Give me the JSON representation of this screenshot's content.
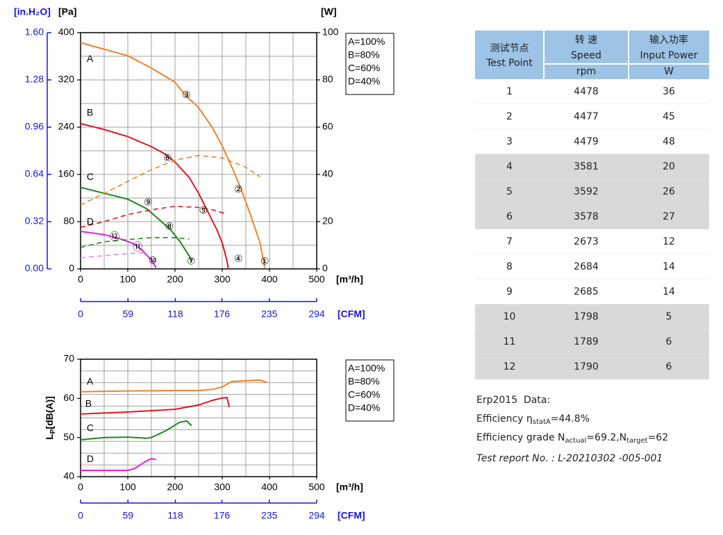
{
  "chart_data": [
    {
      "type": "line",
      "x_label": "[m³/h]",
      "x2_label": "[CFM]",
      "y_label": "[Pa]",
      "y2_label": "[W]",
      "y3_label": "[in.H₂O]",
      "xlim": [
        0,
        500
      ],
      "xticks": [
        0,
        100,
        200,
        300,
        400,
        500
      ],
      "x2lim": [
        0,
        294
      ],
      "x2ticks": [
        0,
        59,
        118,
        176,
        235,
        294
      ],
      "ylim": [
        0,
        400
      ],
      "yticks": [
        0,
        80,
        160,
        240,
        320,
        400
      ],
      "y2lim": [
        0,
        100
      ],
      "y2ticks": [
        0,
        20,
        40,
        60,
        80,
        100
      ],
      "y3lim": [
        0,
        1.6
      ],
      "y3ticks": [
        {
          "value": 0,
          "label": "0.00"
        },
        0.32,
        0.64,
        0.96,
        1.28,
        {
          "value": 1.6,
          "label": "1.60"
        }
      ],
      "grid": true,
      "xgrid": [
        50,
        100,
        150,
        200,
        250,
        300,
        350,
        400,
        450
      ],
      "ygrid": [
        40,
        80,
        120,
        160,
        200,
        240,
        280,
        320,
        360
      ],
      "legend": "outside-right",
      "series": [
        {
          "name": "A=100%",
          "color": "#f58220",
          "x": [
            0,
            50,
            100,
            150,
            200,
            222,
            250,
            280,
            300,
            320,
            340,
            360,
            380,
            390
          ],
          "values": [
            383,
            372,
            361,
            340,
            316,
            294,
            273,
            238,
            208,
            173,
            135,
            91,
            44,
            2
          ]
        },
        {
          "name": "B=80%",
          "color": "#e8141b",
          "x": [
            0,
            50,
            100,
            150,
            180,
            200,
            230,
            250,
            270,
            290,
            300,
            310,
            313
          ],
          "values": [
            246,
            236,
            224,
            207,
            194,
            181,
            155,
            128,
            96,
            64,
            44,
            14,
            0
          ]
        },
        {
          "name": "C=60%",
          "color": "#1a8a1a",
          "x": [
            0,
            50,
            100,
            140,
            160,
            190,
            210,
            230,
            235
          ],
          "values": [
            138,
            128,
            118,
            102,
            88,
            67,
            47,
            22,
            12
          ]
        },
        {
          "name": "D=40%",
          "color": "#e61ee6",
          "x": [
            0,
            50,
            80,
            110,
            130,
            150,
            160
          ],
          "values": [
            63.5,
            58,
            52,
            43.5,
            32,
            15,
            2
          ]
        },
        {
          "color": "#f58220",
          "axis": "y2",
          "dashed": true,
          "x": [
            0,
            50,
            100,
            150,
            200,
            250,
            300,
            350,
            380
          ],
          "values": [
            27,
            32,
            37,
            42,
            46,
            48,
            47,
            43,
            39
          ]
        },
        {
          "color": "#e8141b",
          "axis": "y2",
          "dashed": true,
          "x": [
            0,
            50,
            100,
            150,
            200,
            250,
            280,
            305
          ],
          "values": [
            17.6,
            20,
            23,
            25,
            26.5,
            26,
            25,
            23.5
          ]
        },
        {
          "color": "#1a8a1a",
          "axis": "y2",
          "dashed": true,
          "x": [
            0,
            50,
            100,
            150,
            200,
            230
          ],
          "values": [
            9.1,
            11.5,
            12.4,
            13.2,
            13.2,
            12.6
          ]
        },
        {
          "color": "#f080f0",
          "axis": "y2",
          "dashed": true,
          "x": [
            0,
            50,
            100,
            140
          ],
          "values": [
            4.7,
            5.6,
            6.5,
            6.8
          ]
        }
      ],
      "curve_labels": [
        {
          "text": "A",
          "x": 13,
          "y": 355,
          "color": "#f58220"
        },
        {
          "text": "B",
          "x": 13,
          "y": 264,
          "color": "#e8141b"
        },
        {
          "text": "C",
          "x": 13,
          "y": 155,
          "color": "#1a8a1a"
        },
        {
          "text": "D",
          "x": 13,
          "y": 79,
          "color": "#f07cf0"
        }
      ],
      "points": [
        {
          "text": "①",
          "x": 390,
          "y": 12
        },
        {
          "text": "②",
          "x": 334,
          "y": 134
        },
        {
          "text": "③",
          "x": 224,
          "y": 294
        },
        {
          "text": "④",
          "x": 334,
          "y": 16
        },
        {
          "text": "⑤",
          "x": 260,
          "y": 98
        },
        {
          "text": "⑥",
          "x": 184,
          "y": 187
        },
        {
          "text": "⑦",
          "x": 234,
          "y": 12
        },
        {
          "text": "⑧",
          "x": 188,
          "y": 71
        },
        {
          "text": "⑨",
          "x": 143,
          "y": 112
        },
        {
          "text": "⑩",
          "x": 153,
          "y": 13
        },
        {
          "text": "⑪",
          "x": 121,
          "y": 36
        },
        {
          "text": "⑫",
          "x": 72,
          "y": 53
        }
      ]
    },
    {
      "type": "line",
      "x_label": "[m³/h]",
      "x2_label": "[CFM]",
      "y_label": [
        "L",
        "P",
        "[dB(A)]"
      ],
      "xlim": [
        0,
        500
      ],
      "xticks": [
        0,
        100,
        200,
        300,
        400,
        500
      ],
      "x2lim": [
        0,
        294
      ],
      "x2ticks": [
        0,
        59,
        118,
        176,
        235,
        294
      ],
      "ylim": [
        40,
        70
      ],
      "yticks": [
        40,
        50,
        60,
        70
      ],
      "grid": true,
      "xgrid": [
        50,
        100,
        150,
        200,
        250,
        300,
        350,
        400,
        450
      ],
      "ygrid": [
        43,
        46,
        49,
        52,
        55,
        58,
        61,
        64,
        67
      ],
      "legend": "outside-right",
      "series": [
        {
          "name": "A=100%",
          "color": "#f58220",
          "x": [
            0,
            100,
            200,
            250,
            280,
            300,
            320,
            350,
            380,
            395
          ],
          "values": [
            61.7,
            61.9,
            62,
            62,
            62.3,
            62.9,
            64.3,
            64.5,
            64.7,
            64
          ]
        },
        {
          "name": "B=80%",
          "color": "#e8141b",
          "x": [
            0,
            100,
            200,
            250,
            280,
            300,
            310,
            315
          ],
          "values": [
            56,
            56.5,
            57.2,
            58.3,
            59.5,
            60.1,
            60.2,
            57.8
          ]
        },
        {
          "name": "C=60%",
          "color": "#1a8a1a",
          "x": [
            0,
            50,
            100,
            140,
            150,
            180,
            210,
            225,
            235
          ],
          "values": [
            49.4,
            50,
            50.1,
            49.8,
            50,
            51.7,
            53.9,
            54.2,
            53
          ]
        },
        {
          "name": "D=40%",
          "color": "#e61ee6",
          "x": [
            0,
            100,
            115,
            135,
            150,
            160
          ],
          "values": [
            41.6,
            41.6,
            42.1,
            43.7,
            44.6,
            44.4
          ]
        }
      ],
      "curve_labels": [
        {
          "text": "A",
          "x": 13,
          "y": 64.2,
          "color": "#f58220"
        },
        {
          "text": "B",
          "x": 10,
          "y": 58.5,
          "color": "#e8141b"
        },
        {
          "text": "C",
          "x": 13,
          "y": 52.3,
          "color": "#1a8a1a"
        },
        {
          "text": "D",
          "x": 13,
          "y": 44.4,
          "color": "#f07cf0"
        }
      ]
    }
  ],
  "table": {
    "header": {
      "test_point": [
        "测试节点",
        "Test Point"
      ],
      "speed": [
        "转 速",
        "Speed"
      ],
      "speed_unit": "rpm",
      "power": [
        "输入功率",
        "Input Power"
      ],
      "power_unit": "W"
    },
    "rows": [
      [
        1,
        4478,
        36
      ],
      [
        2,
        4477,
        45
      ],
      [
        3,
        4479,
        48
      ],
      [
        4,
        3581,
        20
      ],
      [
        5,
        3592,
        26
      ],
      [
        6,
        3578,
        27
      ],
      [
        7,
        2673,
        12
      ],
      [
        8,
        2684,
        14
      ],
      [
        9,
        2685,
        14
      ],
      [
        10,
        1798,
        5
      ],
      [
        11,
        1789,
        6
      ],
      [
        12,
        1790,
        6
      ]
    ]
  },
  "notes": {
    "erp": "Erp2015  Data:",
    "efficiency": [
      "Efficiency η",
      "statA",
      "=44.8%"
    ],
    "grade": [
      "Efficiency grade N",
      "actual",
      "=69.2,N",
      "target",
      "=62"
    ],
    "report": "Test report No. : L-20210302 -005-001"
  }
}
